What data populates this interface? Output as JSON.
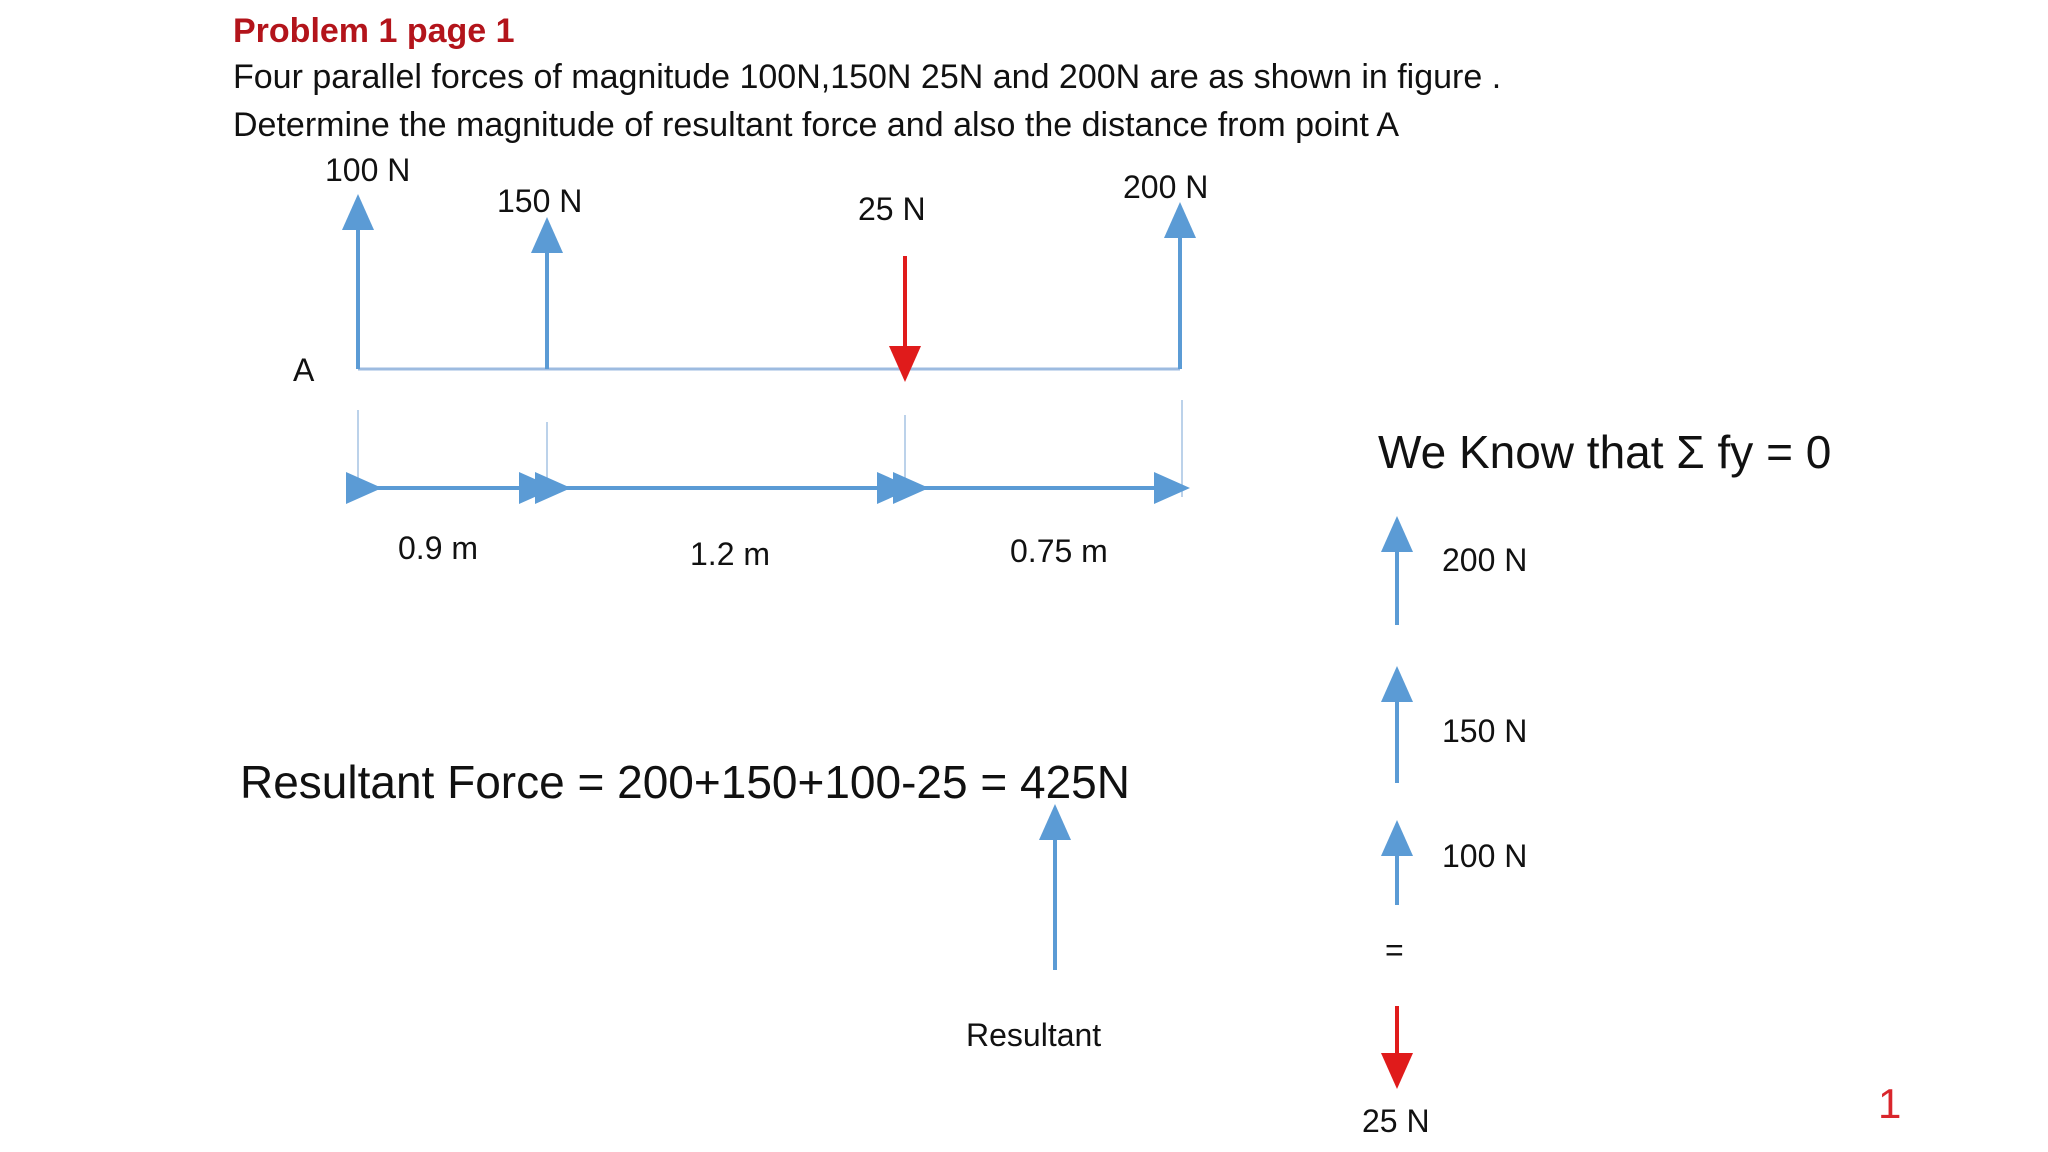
{
  "problem": {
    "title": "Problem  1 page 1",
    "statement_line1": "Four parallel forces of magnitude 100N,150N 25N and 200N are as shown in figure .",
    "statement_line2": "Determine the magnitude of resultant force and  also the distance from point A"
  },
  "beam": {
    "point_label": "A",
    "forces": [
      {
        "label": "100 N",
        "magnitude": 100,
        "direction": "up"
      },
      {
        "label": "150 N",
        "magnitude": 150,
        "direction": "up"
      },
      {
        "label": "25 N",
        "magnitude": 25,
        "direction": "down"
      },
      {
        "label": "200 N",
        "magnitude": 200,
        "direction": "up"
      }
    ],
    "distances": [
      {
        "label": "0.9 m",
        "value": 0.9
      },
      {
        "label": "1.2 m",
        "value": 1.2
      },
      {
        "label": "0.75 m",
        "value": 0.75
      }
    ]
  },
  "equilibrium": {
    "heading": "We Know that Σ fy = 0",
    "stack": [
      {
        "label": "200 N",
        "direction": "up"
      },
      {
        "label": "150 N",
        "direction": "up"
      },
      {
        "label": "100 N",
        "direction": "up"
      }
    ],
    "equals": "=",
    "down_force": {
      "label": "25 N",
      "direction": "down"
    }
  },
  "resultant": {
    "equation": "Resultant Force = 200+150+100-25 = 425N",
    "label": "Resultant"
  },
  "colors": {
    "up_arrow": "#5b9bd5",
    "down_arrow": "#e01b1b",
    "title": "#b3141b",
    "page_number": "#d9262c"
  },
  "slide_number": "1"
}
